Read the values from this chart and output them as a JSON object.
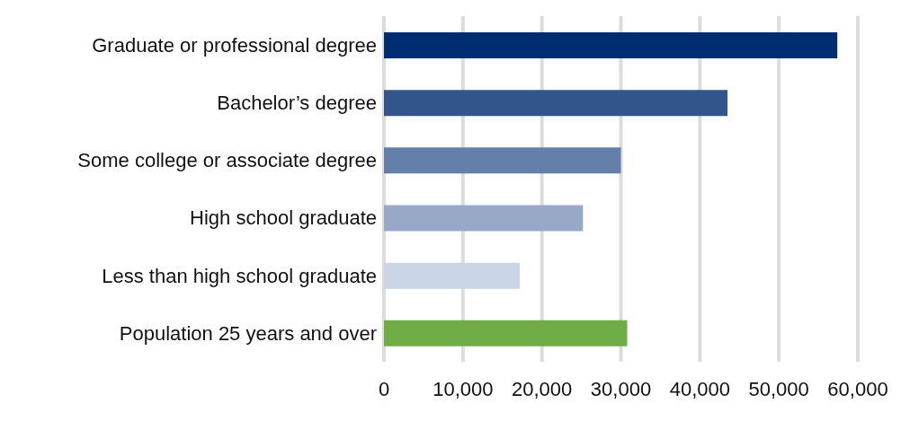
{
  "chart_data": {
    "type": "bar",
    "orientation": "horizontal",
    "categories": [
      "Graduate or professional degree",
      "Bachelor’s degree",
      "Some college or associate degree",
      "High school graduate",
      "Less than high school graduate",
      "Population 25 years and over"
    ],
    "values": [
      57400,
      43500,
      30000,
      25200,
      17200,
      30800
    ],
    "colors": [
      "#002d72",
      "#32568c",
      "#657fab",
      "#97a9c6",
      "#cad5e5",
      "#70ad47"
    ],
    "xlim": [
      0,
      60000
    ],
    "xticks": [
      {
        "value": 0,
        "label": "0"
      },
      {
        "value": 10000,
        "label": "10,000"
      },
      {
        "value": 20000,
        "label": "20,000"
      },
      {
        "value": 30000,
        "label": "30,000"
      },
      {
        "value": 40000,
        "label": "40,000"
      },
      {
        "value": 50000,
        "label": "50,000"
      },
      {
        "value": 60000,
        "label": "60,000"
      }
    ],
    "grid": "x"
  }
}
